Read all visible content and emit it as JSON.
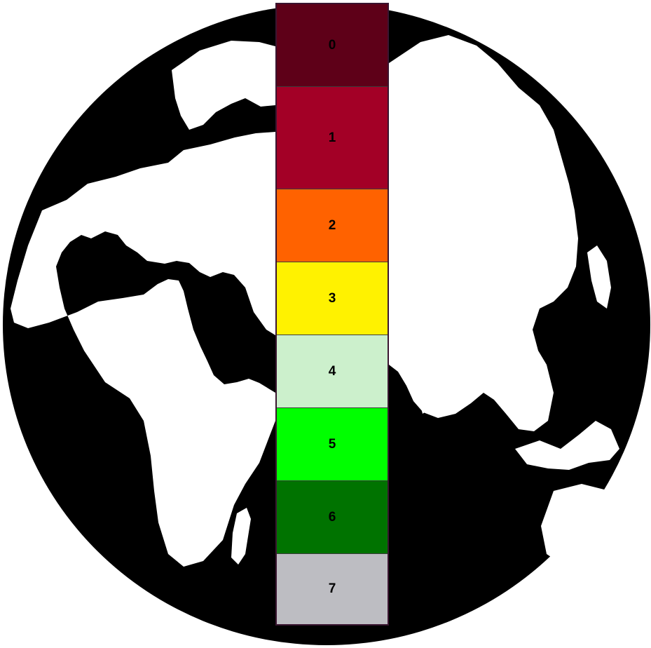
{
  "globe": {
    "ocean_color": "#000000",
    "land_color": "#ffffff"
  },
  "scale": {
    "border_color": "#3a1530",
    "bands": [
      {
        "label": "0",
        "color": "#5e0018"
      },
      {
        "label": "1",
        "color": "#a30026"
      },
      {
        "label": "2",
        "color": "#ff6200"
      },
      {
        "label": "3",
        "color": "#fff200"
      },
      {
        "label": "4",
        "color": "#ccf0cc"
      },
      {
        "label": "5",
        "color": "#00ff00"
      },
      {
        "label": "6",
        "color": "#007300"
      },
      {
        "label": "7",
        "color": "#bdbdc2"
      }
    ]
  }
}
